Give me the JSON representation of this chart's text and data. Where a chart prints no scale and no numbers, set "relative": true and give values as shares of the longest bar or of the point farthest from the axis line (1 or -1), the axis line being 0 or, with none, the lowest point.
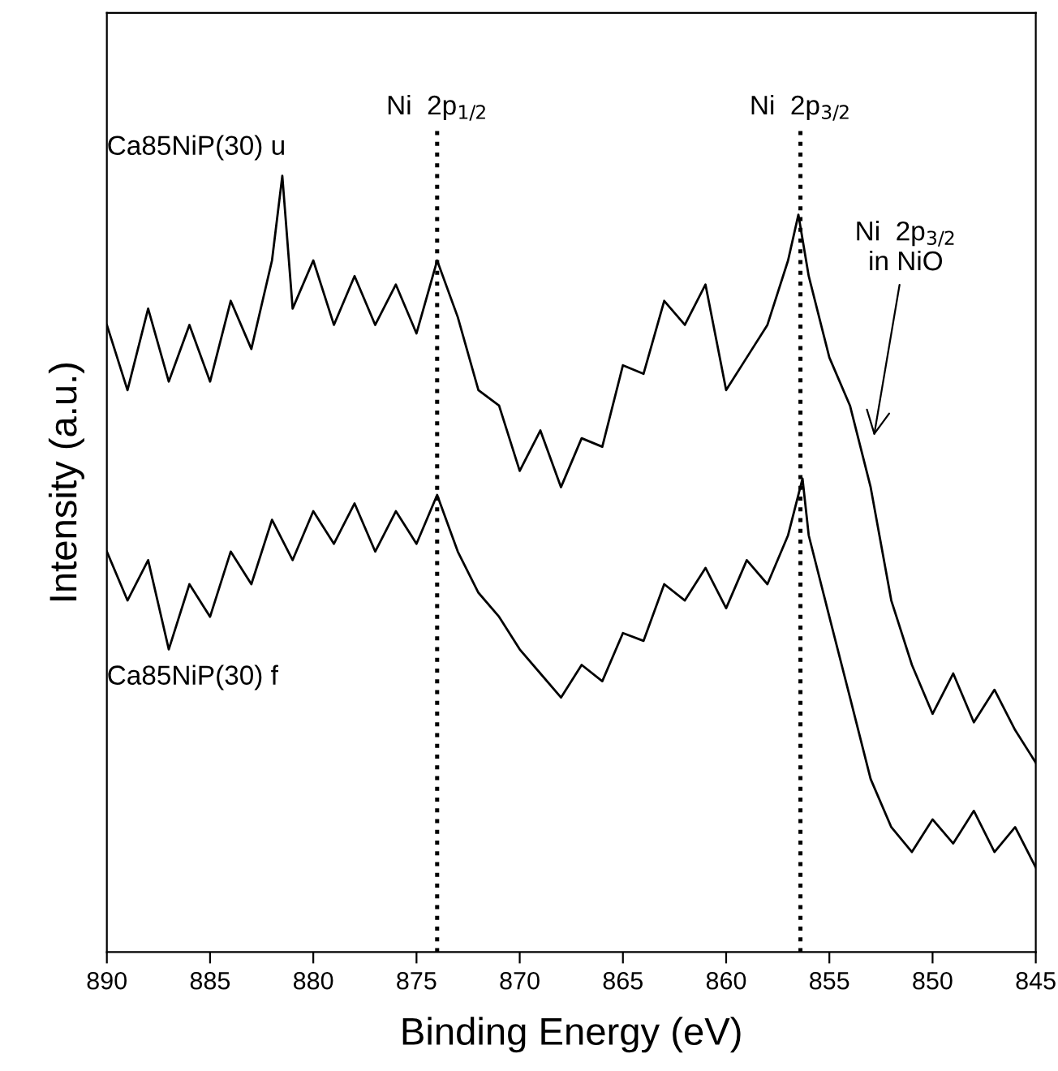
{
  "chart_data": {
    "type": "line",
    "relative": true,
    "xlabel": "Binding Energy (eV)",
    "ylabel": "Intensity (a.u.)",
    "xlim": [
      890,
      845
    ],
    "xticks": [
      890,
      885,
      880,
      875,
      870,
      865,
      860,
      855,
      850,
      845
    ],
    "grid": false,
    "legend": false,
    "marker": "none",
    "line_style": "solid",
    "series": [
      {
        "name": "Ca85NiP(30) u",
        "color": "#000000",
        "x": [
          890,
          889,
          888,
          887,
          886,
          885,
          884,
          883,
          882,
          881.5,
          881,
          880,
          879,
          878,
          877,
          876,
          875,
          874,
          873,
          872,
          871,
          870,
          869,
          868,
          867,
          866,
          865,
          864,
          863,
          862,
          861,
          860,
          859,
          858,
          857,
          856.5,
          856,
          855,
          854,
          853,
          852,
          851,
          850,
          849,
          848,
          847,
          846,
          845
        ],
        "values": [
          0.808,
          0.724,
          0.829,
          0.735,
          0.808,
          0.735,
          0.839,
          0.777,
          0.891,
          1.0,
          0.829,
          0.891,
          0.808,
          0.871,
          0.808,
          0.86,
          0.797,
          0.891,
          0.818,
          0.724,
          0.704,
          0.62,
          0.672,
          0.599,
          0.662,
          0.651,
          0.756,
          0.745,
          0.839,
          0.808,
          0.86,
          0.724,
          0.766,
          0.808,
          0.891,
          0.95,
          0.871,
          0.766,
          0.704,
          0.599,
          0.453,
          0.37,
          0.307,
          0.359,
          0.296,
          0.338,
          0.286,
          0.244
        ]
      },
      {
        "name": "Ca85NiP(30) f",
        "color": "#000000",
        "x": [
          890,
          889,
          888,
          887,
          886,
          885,
          884,
          883,
          882,
          881,
          880,
          879,
          878,
          877,
          876,
          875,
          874,
          873,
          872,
          871,
          870,
          869,
          868,
          867,
          866,
          865,
          864,
          863,
          862,
          861,
          860,
          859,
          858,
          857,
          856.3,
          856,
          855,
          854,
          853,
          852,
          851,
          850,
          849,
          848,
          847,
          846,
          845
        ],
        "values": [
          0.516,
          0.453,
          0.505,
          0.39,
          0.474,
          0.432,
          0.516,
          0.474,
          0.557,
          0.505,
          0.568,
          0.526,
          0.578,
          0.516,
          0.568,
          0.526,
          0.589,
          0.516,
          0.463,
          0.432,
          0.39,
          0.359,
          0.328,
          0.37,
          0.349,
          0.411,
          0.401,
          0.474,
          0.453,
          0.495,
          0.443,
          0.505,
          0.474,
          0.537,
          0.61,
          0.537,
          0.432,
          0.328,
          0.223,
          0.161,
          0.129,
          0.171,
          0.14,
          0.182,
          0.129,
          0.161,
          0.109
        ]
      }
    ],
    "ref_lines": [
      {
        "axis": "x",
        "value": 874,
        "label": "Ni  2p$_{1/2}$",
        "color": "#000000",
        "line_style": "dotted"
      },
      {
        "axis": "x",
        "value": 856.4,
        "label": "Ni  2p$_{3/2}$",
        "color": "#000000",
        "line_style": "dotted"
      }
    ],
    "annotations": [
      "Ni  2p$_{3/2}$\nin NiO"
    ]
  }
}
